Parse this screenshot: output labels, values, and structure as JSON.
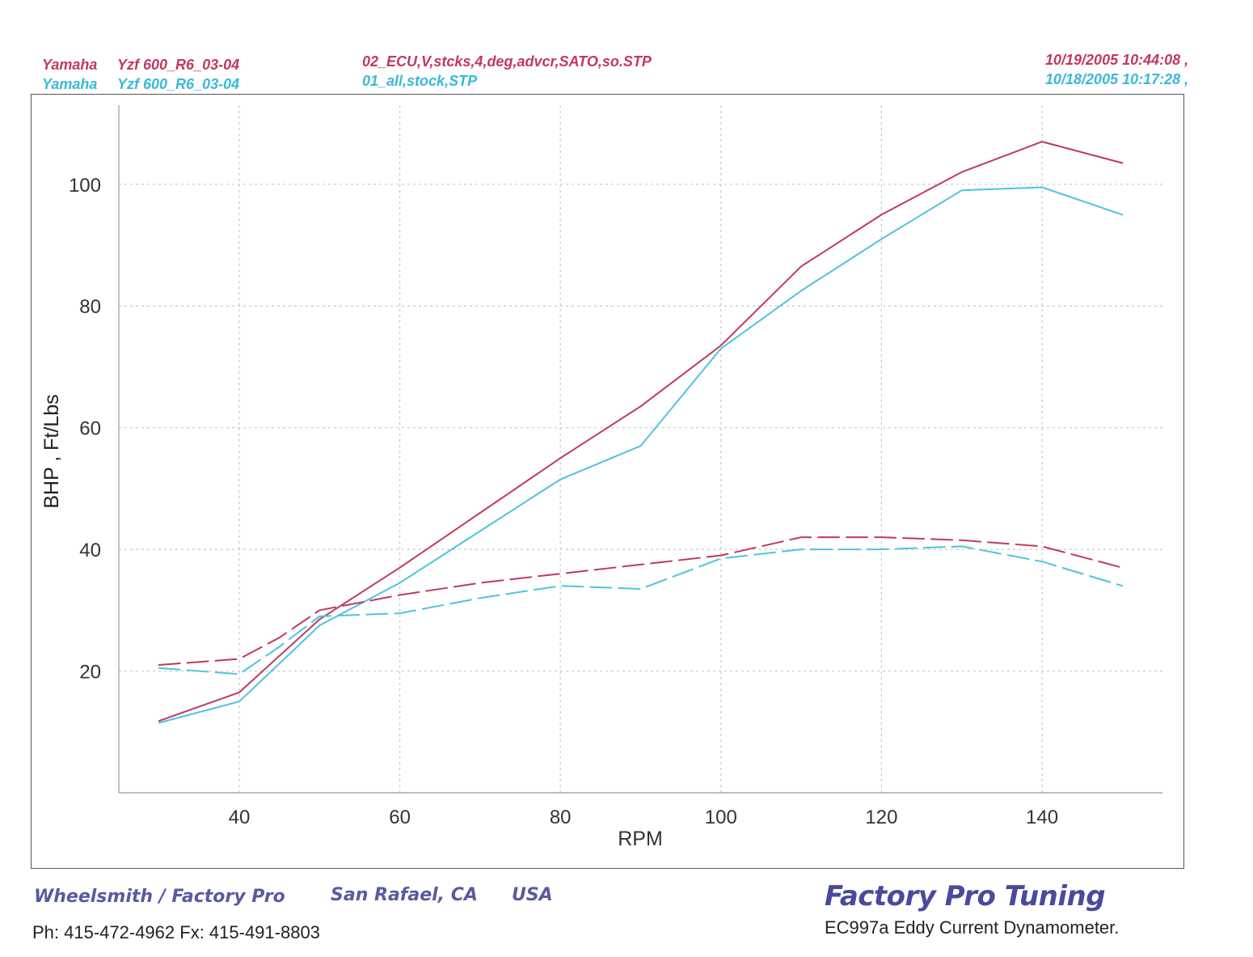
{
  "header": {
    "run1": {
      "make": "Yamaha",
      "model": "Yzf 600_R6_03-04",
      "file": "02_ECU,V,stcks,4,deg,advcr,SATO,so.STP",
      "timestamp": "10/19/2005 10:44:08 ,"
    },
    "run2": {
      "make": "Yamaha",
      "model": "Yzf 600_R6_03-04",
      "file": "01_all,stock,STP",
      "timestamp": "10/18/2005 10:17:28 ,"
    }
  },
  "colors": {
    "run1": "#c2385f",
    "run2": "#4ec3df",
    "grid": "#c8c8c8",
    "axis": "#999999",
    "brand": "#4a4a9c"
  },
  "chart_data": {
    "type": "line",
    "xlabel": "RPM",
    "ylabel": "BHP , Ft/Lbs",
    "xlim": [
      25,
      155
    ],
    "ylim": [
      0,
      113
    ],
    "xticks": [
      40,
      60,
      80,
      100,
      120,
      140
    ],
    "yticks": [
      20,
      40,
      60,
      80,
      100
    ],
    "grid": true,
    "series": [
      {
        "color": "#c2385f",
        "dash": "solid",
        "points": [
          [
            30,
            11.8
          ],
          [
            40,
            16.5
          ],
          [
            50,
            28.5
          ],
          [
            60,
            37
          ],
          [
            70,
            46
          ],
          [
            80,
            55
          ],
          [
            90,
            63.5
          ],
          [
            100,
            73.5
          ],
          [
            110,
            86.5
          ],
          [
            120,
            95
          ],
          [
            130,
            102
          ],
          [
            140,
            107
          ],
          [
            150,
            103.5
          ]
        ]
      },
      {
        "color": "#4ec3df",
        "dash": "solid",
        "points": [
          [
            30,
            11.5
          ],
          [
            40,
            15
          ],
          [
            50,
            27.5
          ],
          [
            60,
            34.5
          ],
          [
            70,
            43
          ],
          [
            80,
            51.5
          ],
          [
            90,
            57
          ],
          [
            100,
            73
          ],
          [
            110,
            82.5
          ],
          [
            120,
            91
          ],
          [
            130,
            99
          ],
          [
            140,
            99.5
          ],
          [
            150,
            95
          ]
        ]
      },
      {
        "color": "#c2385f",
        "dash": "dashed",
        "points": [
          [
            30,
            21
          ],
          [
            40,
            22
          ],
          [
            45,
            25.5
          ],
          [
            50,
            30
          ],
          [
            60,
            32.5
          ],
          [
            70,
            34.5
          ],
          [
            80,
            36
          ],
          [
            90,
            37.5
          ],
          [
            100,
            39
          ],
          [
            110,
            42
          ],
          [
            120,
            42
          ],
          [
            130,
            41.5
          ],
          [
            140,
            40.5
          ],
          [
            150,
            37
          ]
        ]
      },
      {
        "color": "#4ec3df",
        "dash": "dashed",
        "points": [
          [
            30,
            20.5
          ],
          [
            40,
            19.5
          ],
          [
            45,
            24
          ],
          [
            50,
            29
          ],
          [
            60,
            29.5
          ],
          [
            70,
            32
          ],
          [
            80,
            34
          ],
          [
            90,
            33.5
          ],
          [
            100,
            38.5
          ],
          [
            110,
            40
          ],
          [
            120,
            40
          ],
          [
            130,
            40.5
          ],
          [
            140,
            38
          ],
          [
            150,
            34
          ]
        ]
      }
    ]
  },
  "footer": {
    "shop": "Wheelsmith / Factory Pro",
    "location": "San Rafael, CA",
    "country": "USA",
    "phone": "Ph: 415-472-4962  Fx: 415-491-8803",
    "brand": "Factory Pro Tuning",
    "dyno": "EC997a  Eddy Current Dynamometer."
  }
}
